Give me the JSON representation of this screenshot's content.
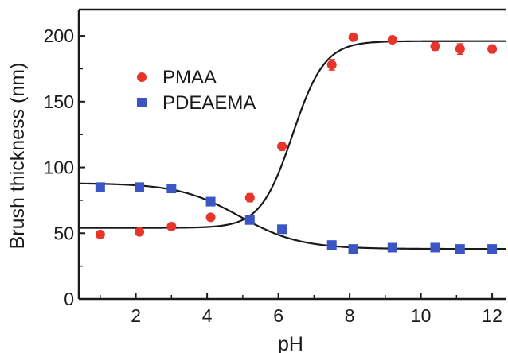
{
  "chart_data": {
    "type": "scatter",
    "title": "",
    "xlabel": "pH",
    "ylabel": "Brush thickness (nm)",
    "xlim": [
      0.4,
      12.4
    ],
    "ylim": [
      0,
      220
    ],
    "xticks": [
      2,
      4,
      6,
      8,
      10,
      12
    ],
    "yticks": [
      0,
      50,
      100,
      150,
      200
    ],
    "grid": false,
    "legend_position": "upper-left",
    "series": [
      {
        "name": "PMAA",
        "marker": "circle",
        "color": "#e8352b",
        "x": [
          1.0,
          2.1,
          3.0,
          4.1,
          5.2,
          6.1,
          7.5,
          8.1,
          9.2,
          10.4,
          11.1,
          12.0
        ],
        "y": [
          49,
          51,
          55,
          62,
          77,
          116,
          178,
          199,
          197,
          192,
          190,
          190
        ],
        "error": [
          2,
          2,
          2,
          2,
          3,
          3,
          4,
          2,
          2,
          3,
          4,
          3
        ],
        "fit": {
          "bottom": 54,
          "top": 196,
          "center": 6.4,
          "slope": 0.45
        }
      },
      {
        "name": "PDEAEMA",
        "marker": "square",
        "color": "#3b56c4",
        "x": [
          1.0,
          2.1,
          3.0,
          4.1,
          5.2,
          6.1,
          7.5,
          8.1,
          9.2,
          10.4,
          11.1,
          12.0
        ],
        "y": [
          85,
          85,
          84,
          74,
          60,
          53,
          41,
          38,
          39,
          39,
          38,
          38
        ],
        "error": [
          2,
          2,
          2,
          3,
          2,
          2,
          2,
          2,
          3,
          2,
          2,
          2
        ],
        "fit": {
          "bottom": 38,
          "top": 88,
          "center": 4.9,
          "slope": 0.85
        }
      }
    ],
    "fit_line_color": "#1a1a1a"
  }
}
